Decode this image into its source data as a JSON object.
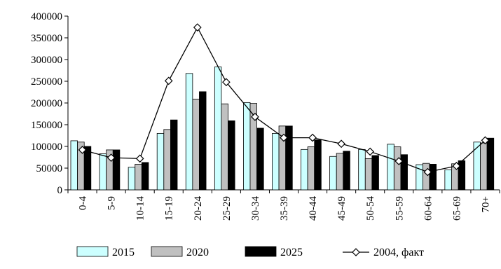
{
  "chart_data": {
    "type": "bar",
    "title": "",
    "xlabel": "",
    "ylabel": "",
    "ylim": [
      0,
      400000
    ],
    "yticks": [
      0,
      50000,
      100000,
      150000,
      200000,
      250000,
      300000,
      350000,
      400000
    ],
    "yticklabels": [
      "0",
      "50000",
      "100000",
      "150000",
      "200000",
      "250000",
      "300000",
      "350000",
      "400000"
    ],
    "grid": false,
    "legend_position": "bottom",
    "categories": [
      "0-4",
      "5-9",
      "10-14",
      "15-19",
      "20-24",
      "25-29",
      "30-34",
      "35-39",
      "40-44",
      "45-49",
      "50-54",
      "55-59",
      "60-64",
      "65-69",
      "70+"
    ],
    "series": [
      {
        "name": "2015",
        "kind": "bar",
        "color": "#ccffff",
        "values": [
          113000,
          83000,
          52000,
          130000,
          268000,
          283000,
          201000,
          130000,
          93000,
          77000,
          93000,
          105000,
          58000,
          46000,
          110000
        ]
      },
      {
        "name": "2020",
        "kind": "bar",
        "color": "#c0c0c0",
        "values": [
          110000,
          92000,
          59000,
          139000,
          209000,
          198000,
          199000,
          147000,
          99000,
          84000,
          72000,
          99000,
          61000,
          60000,
          108000
        ]
      },
      {
        "name": "2025",
        "kind": "bar",
        "color": "#000000",
        "values": [
          100000,
          92000,
          63000,
          161000,
          226000,
          159000,
          142000,
          147000,
          115000,
          89000,
          79000,
          81000,
          59000,
          67000,
          119000
        ]
      },
      {
        "name": "2004, факт",
        "kind": "line",
        "color": "#000000",
        "marker": "diamond",
        "values": [
          92000,
          74000,
          72000,
          251000,
          374000,
          248000,
          168000,
          120000,
          120000,
          106000,
          88000,
          66000,
          41000,
          55000,
          114000
        ]
      }
    ]
  }
}
